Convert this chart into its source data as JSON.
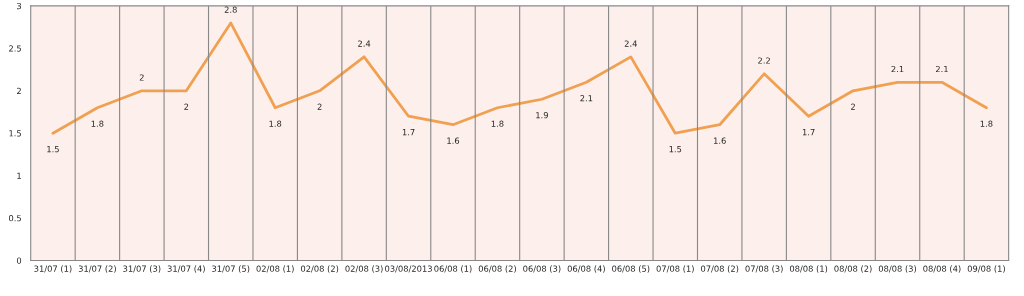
{
  "chart_data": {
    "type": "line",
    "categories": [
      "31/07 (1)",
      "31/07 (2)",
      "31/07 (3)",
      "31/07 (4)",
      "31/07 (5)",
      "02/08 (1)",
      "02/08 (2)",
      "02/08 (3)",
      "03/08/2013",
      "06/08 (1)",
      "06/08 (2)",
      "06/08 (3)",
      "06/08 (4)",
      "06/08 (5)",
      "07/08 (1)",
      "07/08 (2)",
      "07/08 (3)",
      "08/08 (1)",
      "08/08 (2)",
      "08/08 (3)",
      "08/08 (4)",
      "09/08 (1)"
    ],
    "series": [
      {
        "color": "#f0a050",
        "values": [
          1.5,
          1.8,
          2,
          2,
          2.8,
          1.8,
          2,
          2.4,
          1.7,
          1.6,
          1.8,
          1.9,
          2.1,
          2.4,
          1.5,
          1.6,
          2.2,
          1.7,
          2,
          2.1,
          2.1,
          1.8
        ]
      }
    ],
    "ylim": [
      0,
      3
    ],
    "yticks": [
      0,
      0.5,
      1,
      1.5,
      2,
      2.5,
      3
    ],
    "grid": "x",
    "data_labels": true,
    "marker": "none",
    "line_style": "solid"
  }
}
